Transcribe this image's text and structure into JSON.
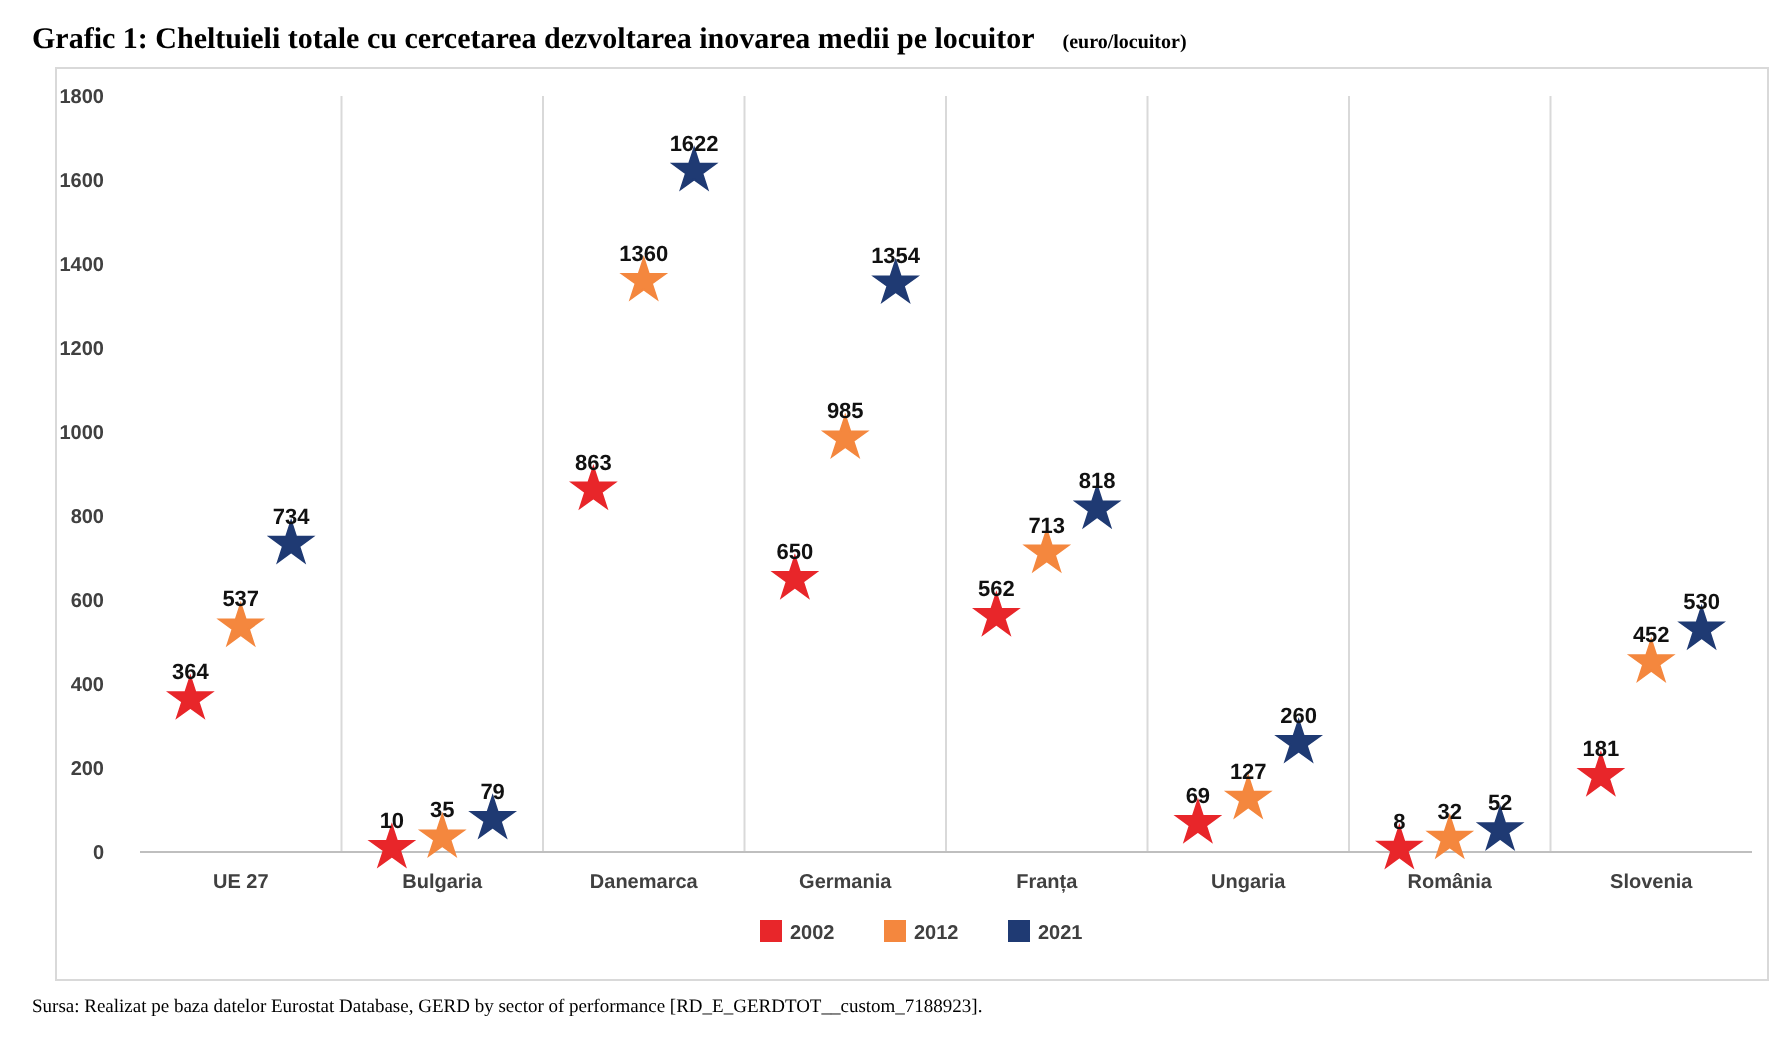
{
  "chart_data": {
    "type": "scatter",
    "title": "Grafic 1: Cheltuieli totale cu cercetarea dezvoltarea inovarea medii pe locuitor",
    "subtitle": "(euro/locuitor)",
    "categories": [
      "UE 27",
      "Bulgaria",
      "Danemarca",
      "Germania",
      "Franța",
      "Ungaria",
      "România",
      "Slovenia"
    ],
    "series": [
      {
        "name": "2002",
        "color": "#e8262a",
        "values": [
          364,
          10,
          863,
          650,
          562,
          69,
          8,
          181
        ]
      },
      {
        "name": "2012",
        "color": "#f4873e",
        "values": [
          537,
          35,
          1360,
          985,
          713,
          127,
          32,
          452
        ]
      },
      {
        "name": "2021",
        "color": "#1f3a73",
        "values": [
          734,
          79,
          1622,
          1354,
          818,
          260,
          52,
          530
        ]
      }
    ],
    "ylim": [
      0,
      1800
    ],
    "yticks": [
      0,
      200,
      400,
      600,
      800,
      1000,
      1200,
      1400,
      1600,
      1800
    ],
    "grid": "x",
    "legend": "bottom",
    "marker": "star",
    "data_labels": true,
    "annotations": [
      "Sursa: Realizat pe baza datelor Eurostat Database, GERD by sector of performance [RD_E_GERDTOT__custom_7188923]."
    ]
  }
}
